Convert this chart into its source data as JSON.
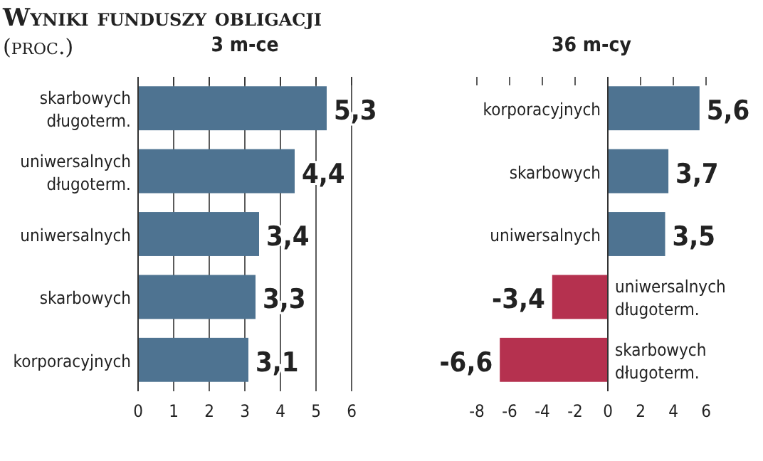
{
  "chart_data": [
    {
      "type": "bar",
      "orientation": "horizontal",
      "title": "Wyniki funduszy obligacji",
      "subtitle": "(proc.)",
      "legend_title": null,
      "xlabel": "3 m-ce",
      "categories": [
        "skarbowych długoterm.",
        "uniwersalnych długoterm.",
        "uniwersalnych",
        "skarbowych",
        "korporacyjnych"
      ],
      "series": [
        {
          "color": "#4e7391",
          "values": [
            5.3,
            4.4,
            3.4,
            3.3,
            3.1
          ],
          "value_labels": [
            "5,3",
            "4,4",
            "3,4",
            "3,3",
            "3,1"
          ]
        }
      ],
      "xlim": [
        0,
        6
      ],
      "xticks": [
        0,
        1,
        2,
        3,
        4,
        5,
        6
      ],
      "grid": "x"
    },
    {
      "type": "bar",
      "orientation": "horizontal",
      "xlabel": "36 m-cy",
      "categories": [
        "korporacyjnych",
        "skarbowych",
        "uniwersalnych",
        "uniwersalnych długoterm.",
        "skarbowych długoterm."
      ],
      "series": [
        {
          "colors": [
            "#4e7391",
            "#4e7391",
            "#4e7391",
            "#b5314f",
            "#b5314f"
          ],
          "values": [
            5.6,
            3.7,
            3.5,
            -3.4,
            -6.6
          ],
          "value_labels": [
            "5,6",
            "3,7",
            "3,5",
            "-3,4",
            "-6,6"
          ]
        }
      ],
      "xlim": [
        -8,
        6
      ],
      "xticks": [
        -8,
        -6,
        -4,
        -2,
        0,
        2,
        4,
        6
      ],
      "grid": false
    }
  ]
}
